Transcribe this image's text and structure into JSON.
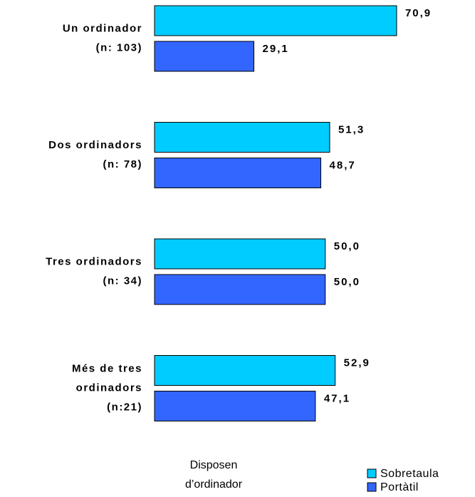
{
  "chart_data": {
    "type": "barh",
    "categories": [
      [
        "Un ordinador",
        "(n: 103)"
      ],
      [
        "Dos ordinadors",
        "(n: 78)"
      ],
      [
        "Tres ordinadors",
        "(n: 34)"
      ],
      [
        "Més de tres",
        "ordinadors",
        "(n:21)"
      ]
    ],
    "series": [
      {
        "name": "Sobretaula",
        "color": "#00ccff",
        "values": [
          70.9,
          51.3,
          50.0,
          52.9
        ],
        "value_labels": [
          "70,9",
          "51,3",
          "50,0",
          "52,9"
        ]
      },
      {
        "name": "Portàtil",
        "color": "#3366ff",
        "values": [
          29.1,
          48.7,
          50.0,
          47.1
        ],
        "value_labels": [
          "29,1",
          "48,7",
          "50,0",
          "47,1"
        ]
      }
    ],
    "xlabel": [
      "Disposen",
      "d’ordinador"
    ],
    "xlim": [
      0,
      100
    ],
    "legend": "bottom-right"
  }
}
